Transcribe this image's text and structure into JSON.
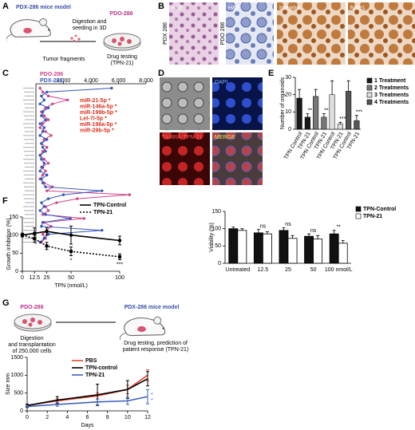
{
  "panel_labels": [
    "A",
    "B",
    "C",
    "D",
    "E",
    "F",
    "G"
  ],
  "panel_a": {
    "mouse_label": "PDX-286 mice model",
    "dish_label": "PDO-286",
    "process": [
      "Digestion and",
      "seeding in 3D"
    ],
    "fragments": "Tumor fragments",
    "testing": [
      "Drug testing",
      "(TPN-21)"
    ]
  },
  "panel_b": {
    "images": [
      "H&E",
      "H&E",
      "Integrins",
      "NRP1"
    ],
    "rows": [
      "PDX 286",
      "PDO 286"
    ]
  },
  "panel_d": {
    "images": [
      "DAPI",
      "TAMRA-TPN-21",
      "MERGE"
    ]
  },
  "panel_g": {
    "dish_label": "PDO-286",
    "mouse_label": "PDX-286 mice model",
    "process": [
      "Digestion",
      "and transplantation",
      "of 250,000 cells"
    ],
    "testing": [
      "Drug testing, prediction of",
      "patient response (TPN-21)"
    ]
  },
  "chart_data": [
    {
      "type": "line",
      "orientation": "horizontal",
      "categories": [
        null,
        null,
        null,
        null,
        null,
        null,
        null,
        null,
        null,
        null,
        null,
        null,
        null,
        null,
        null,
        null,
        null,
        null,
        null,
        null,
        null,
        null,
        null,
        null,
        null,
        null,
        null,
        null,
        null,
        null,
        null,
        null,
        null,
        null,
        null,
        null,
        null,
        null,
        null,
        null
      ],
      "series": [
        {
          "name": "PDO-286",
          "color": "#cc4488",
          "values": [
            300,
            500,
            900,
            2300,
            1200,
            700,
            400,
            600,
            900,
            500,
            300,
            700,
            1100,
            600,
            400,
            800,
            500,
            300,
            600,
            900,
            400,
            700,
            500,
            300,
            600,
            1200,
            800,
            6800,
            3000,
            1500,
            700,
            900,
            500,
            3500,
            600,
            1100,
            800,
            500,
            700,
            400
          ]
        },
        {
          "name": "PDX-286",
          "color": "#3355bb",
          "values": [
            5500,
            800,
            400,
            600,
            300,
            900,
            500,
            400,
            700,
            300,
            600,
            500,
            300,
            800,
            400,
            500,
            700,
            300,
            400,
            600,
            500,
            300,
            800,
            400,
            500,
            700,
            4800,
            2000,
            900,
            400,
            600,
            300,
            700,
            2500,
            500,
            400,
            4800,
            900,
            600,
            300
          ]
        }
      ],
      "xlim": [
        0,
        8000
      ],
      "xticks": [
        {
          "value": 2000,
          "label": "2,000"
        },
        {
          "value": 4000,
          "label": "4,000"
        },
        {
          "value": 6000,
          "label": "6,000"
        },
        {
          "value": 8000,
          "label": "8,000"
        }
      ],
      "annotations": [
        "miR-21-5p *",
        "miR-146a-5p *",
        "miR-199b-5p *",
        "Let-7i-5p *",
        "miR-196a-5p *",
        "miR-29b-5p *"
      ],
      "legend": "upper left"
    },
    {
      "type": "bar",
      "ylabel": "Number of organoids",
      "ylim": [
        0,
        30
      ],
      "yticks": [
        0,
        10,
        20,
        30
      ],
      "legend": "upper right",
      "series": [
        {
          "name": "1 Treatment",
          "color": "#1a1a1a",
          "categories": [
            "TPN Control",
            "TPN-21"
          ],
          "values": [
            18,
            7
          ],
          "errors": [
            5,
            2
          ],
          "note": "**"
        },
        {
          "name": "2 Treatments",
          "color": "#777777",
          "categories": [
            "TPN Control",
            "TPN-21"
          ],
          "values": [
            19,
            7
          ],
          "errors": [
            4,
            2
          ],
          "note": "**"
        },
        {
          "name": "3 Treatments",
          "color": "#dddddd",
          "categories": [
            "TPN Control",
            "TPN-21"
          ],
          "values": [
            20,
            3
          ],
          "errors": [
            8,
            1
          ],
          "note": "***"
        },
        {
          "name": "4 Treatments",
          "color": "#555555",
          "categories": [
            "TPN Control",
            "TPN-21"
          ],
          "values": [
            22,
            5
          ],
          "errors": [
            6,
            3
          ],
          "note": "***"
        }
      ]
    },
    {
      "type": "line",
      "ylabel": "Growth inhibition (%)",
      "xlabel": "TPN (nmol/L)",
      "x": [
        0,
        12.5,
        25,
        50,
        100
      ],
      "xlim": [
        0,
        100
      ],
      "xticks": [
        0,
        12.5,
        25,
        50,
        100
      ],
      "ylim": [
        0,
        150
      ],
      "yticks": [
        0,
        50,
        100,
        150
      ],
      "legend": "upper right",
      "series": [
        {
          "name": "TPN-Control",
          "color": "#000000",
          "marker": "circle",
          "values": [
            100,
            105,
            110,
            100,
            85
          ],
          "errors": [
            5,
            15,
            10,
            25,
            12
          ]
        },
        {
          "name": "TPN-21",
          "color": "#000000",
          "marker": "square",
          "dash": true,
          "values": [
            100,
            90,
            70,
            55,
            40
          ],
          "errors": [
            5,
            10,
            10,
            12,
            8
          ],
          "notes": [
            null,
            null,
            null,
            "*",
            "***"
          ]
        }
      ]
    },
    {
      "type": "bar",
      "ylabel": "Viability (%)",
      "categories": [
        "Untreated",
        "12.5",
        "25",
        "50",
        "100 nmol/L"
      ],
      "ylim": [
        0,
        150
      ],
      "yticks": [
        0,
        50,
        100,
        150
      ],
      "legend": "upper right",
      "notes": [
        null,
        "ns",
        "ns",
        "ns",
        "**"
      ],
      "series": [
        {
          "name": "TPN-Control",
          "color": "#111111",
          "values": [
            100,
            88,
            95,
            78,
            85
          ],
          "errors": [
            5,
            10,
            8,
            7,
            10
          ]
        },
        {
          "name": "TPN-21",
          "color": "#ffffff",
          "values": [
            95,
            85,
            72,
            70,
            58
          ],
          "errors": [
            5,
            6,
            8,
            10,
            8
          ]
        }
      ]
    },
    {
      "type": "line",
      "ylabel": "Size mm",
      "xlabel": "Days",
      "x": [
        0,
        3,
        7,
        10,
        12
      ],
      "xlim": [
        0,
        12
      ],
      "xticks": [
        0,
        2,
        4,
        6,
        8,
        10,
        12
      ],
      "ylim": [
        0,
        1500
      ],
      "yticks": [
        0,
        500,
        1000,
        1500
      ],
      "legend": "upper left",
      "notes": [
        "*",
        "*"
      ],
      "series": [
        {
          "name": "PBS",
          "color": "#e8452c",
          "values": [
            150,
            280,
            420,
            600,
            1000
          ],
          "errors": [
            30,
            60,
            80,
            120,
            150
          ]
        },
        {
          "name": "TPN-control",
          "color": "#000000",
          "values": [
            150,
            300,
            450,
            600,
            900
          ],
          "errors": [
            40,
            100,
            300,
            250,
            200
          ]
        },
        {
          "name": "TPN-21",
          "color": "#3b5fc0",
          "values": [
            120,
            180,
            250,
            280,
            400
          ],
          "errors": [
            30,
            50,
            80,
            100,
            200
          ]
        }
      ]
    }
  ]
}
